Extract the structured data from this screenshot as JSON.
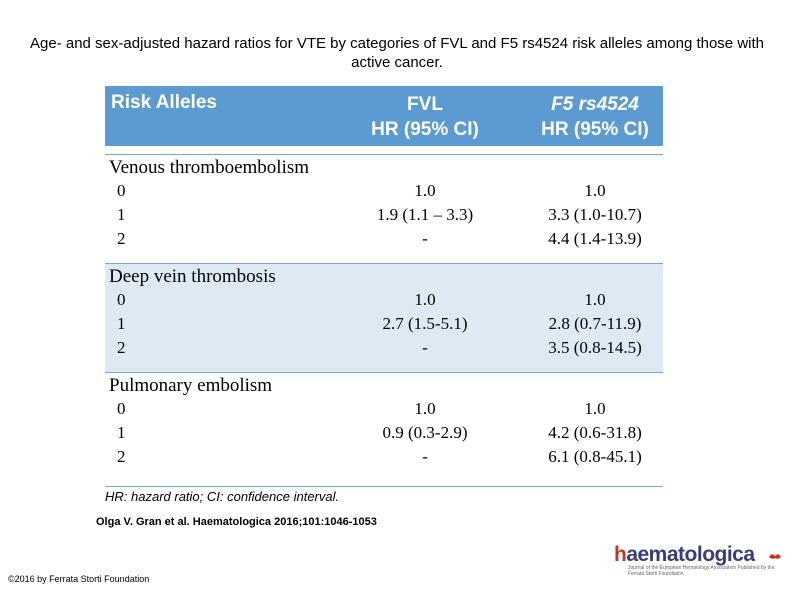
{
  "title": "Age- and sex-adjusted hazard ratios for VTE by categories of FVL and F5 rs4524 risk alleles among those with active cancer.",
  "table": {
    "headers": {
      "col1": "Risk Alleles",
      "col2_line1": "FVL",
      "col2_line2": "HR (95% CI)",
      "col3_line1": "F5 rs4524",
      "col3_line2": "HR (95% CI)"
    },
    "sections": [
      {
        "name": "Venous thromboembolism",
        "rows": [
          {
            "alleles": "0",
            "fvl": "1.0",
            "f5": "1.0"
          },
          {
            "alleles": "1",
            "fvl": "1.9 (1.1 – 3.3)",
            "f5": "3.3 (1.0-10.7)"
          },
          {
            "alleles": "2",
            "fvl": "-",
            "f5": "4.4 (1.4-13.9)"
          }
        ]
      },
      {
        "name": "Deep vein thrombosis",
        "rows": [
          {
            "alleles": "0",
            "fvl": "1.0",
            "f5": "1.0"
          },
          {
            "alleles": "1",
            "fvl": "2.7 (1.5-5.1)",
            "f5": "2.8 (0.7-11.9)"
          },
          {
            "alleles": "2",
            "fvl": "-",
            "f5": "3.5 (0.8-14.5)"
          }
        ]
      },
      {
        "name": "Pulmonary embolism",
        "rows": [
          {
            "alleles": "0",
            "fvl": "1.0",
            "f5": "1.0"
          },
          {
            "alleles": "1",
            "fvl": "0.9 (0.3-2.9)",
            "f5": "4.2 (0.6-31.8)"
          },
          {
            "alleles": "2",
            "fvl": "-",
            "f5": "6.1 (0.8-45.1)"
          }
        ]
      }
    ],
    "footnote": "HR: hazard ratio; CI: confidence interval."
  },
  "citation": "Olga V. Gran et al. Haematologica 2016;101:1046-1053",
  "copyright": "©2016 by Ferrata Storti Foundation",
  "logo": {
    "prefix": "h",
    "word": "aematologica",
    "tagline": "Journal of the European Hematology Association Published by the Ferrata Storti Foundation"
  },
  "colors": {
    "header_bg": "#5b9bd1",
    "shaded_section": "#dde9f3",
    "logo_red": "#c8322b",
    "logo_navy": "#3a3c7a"
  }
}
